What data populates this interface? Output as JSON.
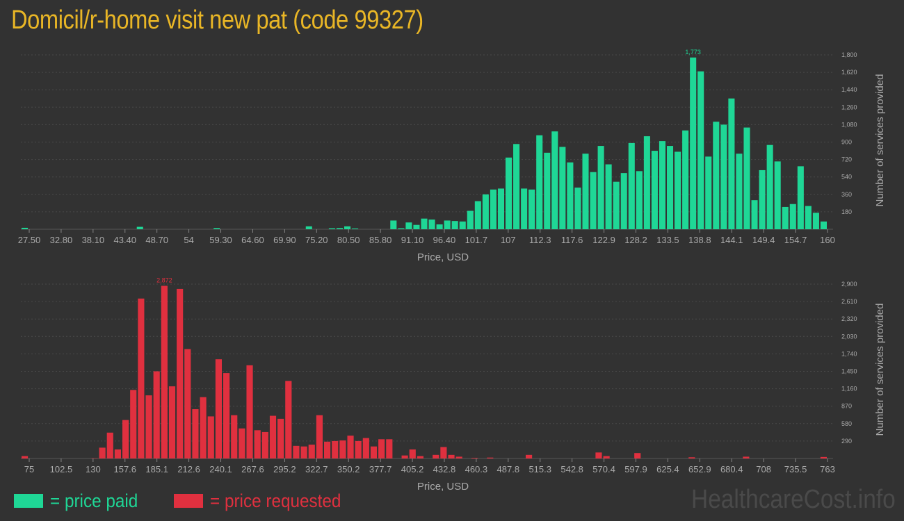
{
  "page": {
    "title": "Domicil/r-home visit new pat (code 99327)"
  },
  "colors": {
    "paid": "#1fd796",
    "requested": "#e0303f",
    "title": "#e9b626",
    "background": "#323232"
  },
  "legend": {
    "paid_label": "= price paid",
    "requested_label": "= price requested"
  },
  "watermark": "HealthcareCost.info",
  "chart_data": [
    {
      "type": "bar",
      "name": "price paid",
      "xlabel": "Price, USD",
      "ylabel": "Number of services provided",
      "ylim": [
        0,
        1800
      ],
      "y_ticks": [
        "180",
        "360",
        "540",
        "720",
        "900",
        "1,080",
        "1,260",
        "1,440",
        "1,620",
        "1,800"
      ],
      "x_ticks": [
        "27.50",
        "32.80",
        "38.10",
        "43.40",
        "48.70",
        "54",
        "59.30",
        "64.60",
        "69.90",
        "75.20",
        "80.50",
        "85.80",
        "91.10",
        "96.40",
        "101.7",
        "107",
        "112.3",
        "117.6",
        "122.9",
        "128.2",
        "133.5",
        "138.8",
        "144.1",
        "149.4",
        "154.7",
        "160"
      ],
      "x_range": [
        27.5,
        160
      ],
      "peak_label": "1,773",
      "grid": true,
      "values": [
        15,
        0,
        0,
        0,
        0,
        0,
        0,
        0,
        0,
        0,
        0,
        0,
        0,
        0,
        0,
        25,
        0,
        0,
        0,
        0,
        0,
        0,
        0,
        0,
        0,
        12,
        0,
        0,
        0,
        0,
        0,
        0,
        0,
        0,
        0,
        0,
        0,
        30,
        0,
        0,
        10,
        12,
        30,
        8,
        0,
        0,
        0,
        0,
        90,
        10,
        70,
        45,
        110,
        100,
        50,
        90,
        85,
        80,
        190,
        290,
        360,
        410,
        420,
        740,
        880,
        420,
        410,
        970,
        790,
        1010,
        850,
        690,
        430,
        780,
        590,
        860,
        670,
        490,
        580,
        890,
        600,
        960,
        810,
        910,
        860,
        800,
        1020,
        1773,
        1630,
        750,
        1110,
        1080,
        1350,
        780,
        1050,
        300,
        610,
        870,
        700,
        230,
        260,
        650,
        240,
        170,
        80
      ]
    },
    {
      "type": "bar",
      "name": "price requested",
      "xlabel": "Price, USD",
      "ylabel": "Number of services provided",
      "ylim": [
        0,
        2900
      ],
      "y_ticks": [
        "290",
        "580",
        "870",
        "1,160",
        "1,450",
        "1,740",
        "2,030",
        "2,320",
        "2,610",
        "2,900"
      ],
      "x_ticks": [
        "75",
        "102.5",
        "130",
        "157.6",
        "185.1",
        "212.6",
        "240.1",
        "267.6",
        "295.2",
        "322.7",
        "350.2",
        "377.7",
        "405.2",
        "432.8",
        "460.3",
        "487.8",
        "515.3",
        "542.8",
        "570.4",
        "597.9",
        "625.4",
        "652.9",
        "680.4",
        "708",
        "735.5",
        "763"
      ],
      "x_range": [
        75,
        763
      ],
      "peak_label": "2,872",
      "grid": true,
      "values": [
        40,
        0,
        0,
        0,
        0,
        0,
        0,
        0,
        0,
        5,
        180,
        430,
        150,
        640,
        1140,
        2660,
        1050,
        1450,
        2872,
        1200,
        2820,
        1820,
        820,
        1020,
        700,
        1650,
        1420,
        720,
        500,
        1550,
        470,
        440,
        710,
        660,
        1290,
        210,
        200,
        230,
        720,
        280,
        290,
        300,
        380,
        290,
        340,
        200,
        320,
        320,
        0,
        50,
        150,
        40,
        0,
        60,
        190,
        60,
        30,
        0,
        10,
        0,
        15,
        0,
        0,
        0,
        0,
        60,
        0,
        0,
        0,
        0,
        0,
        0,
        0,
        0,
        100,
        40,
        0,
        0,
        0,
        90,
        0,
        0,
        0,
        0,
        0,
        0,
        20,
        0,
        0,
        0,
        0,
        0,
        0,
        30,
        0,
        0,
        0,
        0,
        0,
        0,
        0,
        0,
        0,
        25
      ]
    }
  ]
}
